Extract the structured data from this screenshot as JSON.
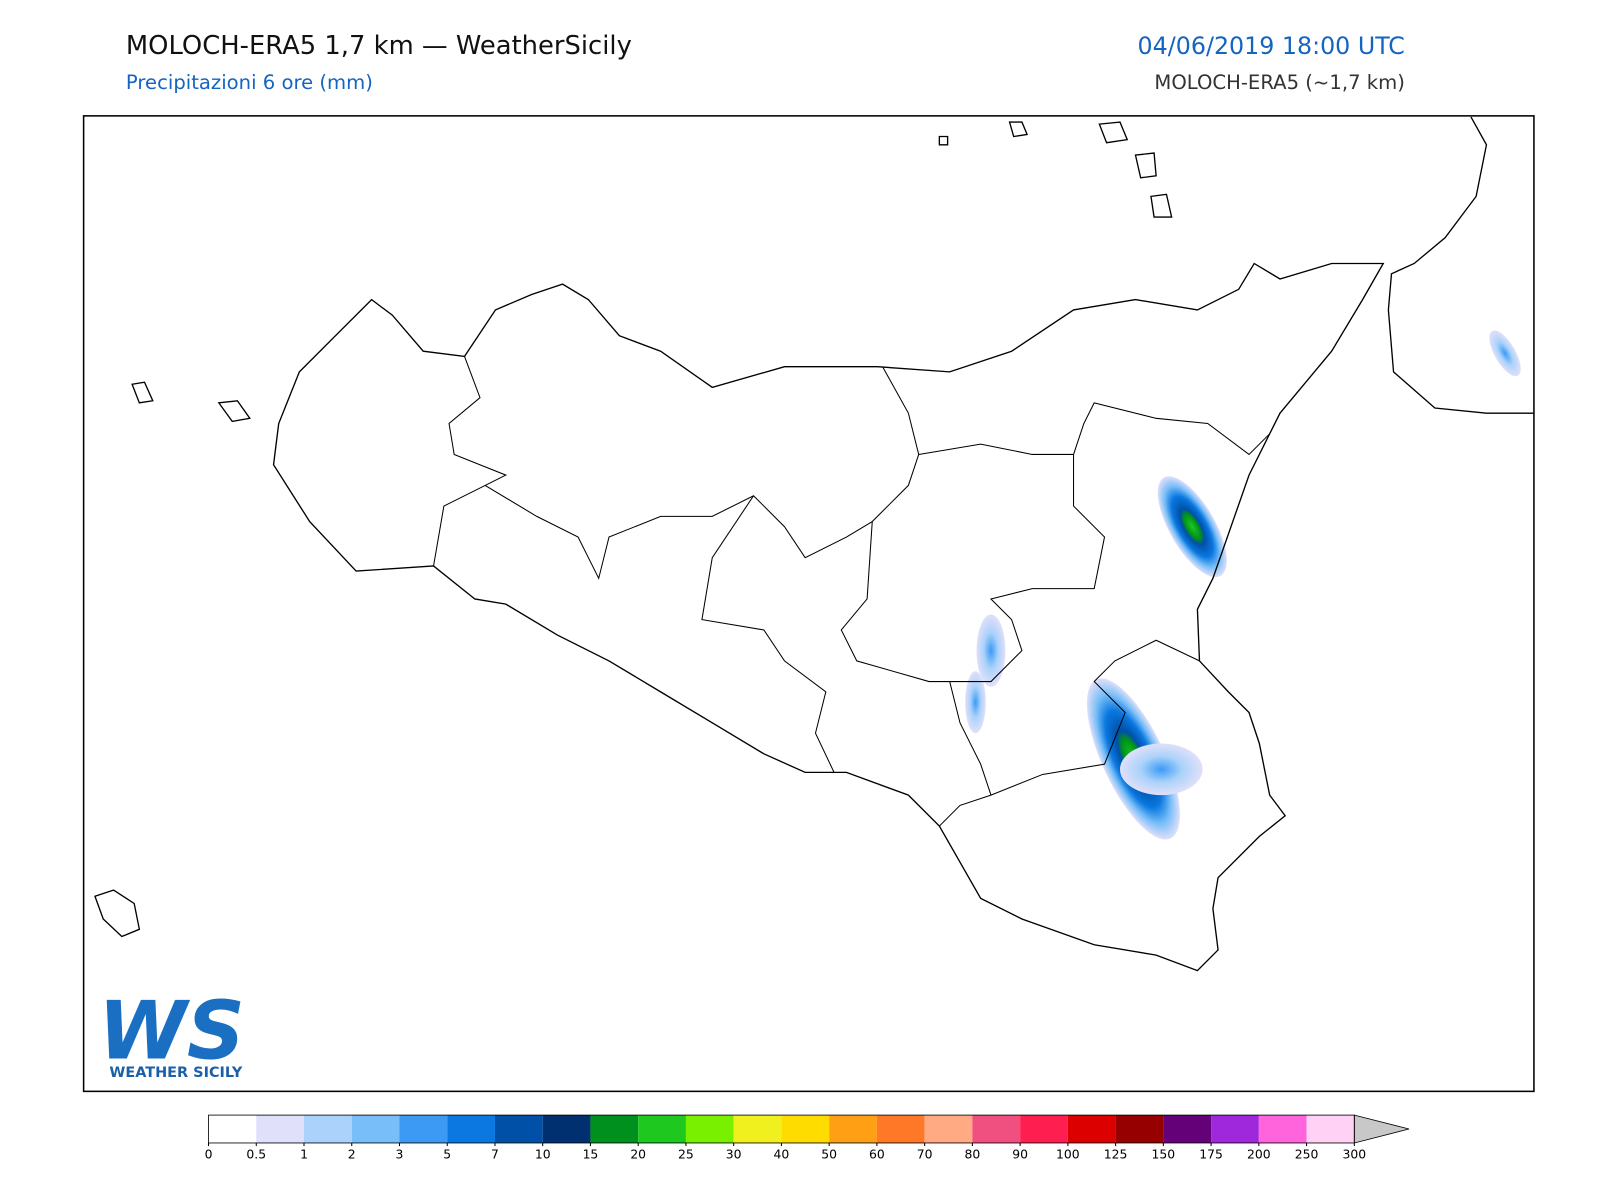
{
  "header": {
    "title": "MOLOCH-ERA5 1,7 km — WeatherSicily",
    "subtitle": "Precipitazioni 6 ore (mm)",
    "datetime": "04/06/2019 18:00 UTC",
    "model": "MOLOCH-ERA5 (~1,7 km)"
  },
  "logo": {
    "letters": "WS",
    "text": "WEATHER SICILY"
  },
  "colorbar": {
    "ticks": [
      0,
      0.5,
      1,
      2,
      3,
      5,
      7,
      10,
      15,
      20,
      25,
      30,
      40,
      50,
      60,
      70,
      80,
      90,
      100,
      125,
      150,
      175,
      200,
      250,
      300
    ],
    "colors": [
      "#ffffff",
      "#e0e0fa",
      "#aad2fa",
      "#78bef8",
      "#3c9af5",
      "#0a78e0",
      "#0050a8",
      "#003070",
      "#00901e",
      "#1ec81e",
      "#78f000",
      "#f0f01e",
      "#ffdc00",
      "#ffa014",
      "#ff7828",
      "#ffaa82",
      "#f05080",
      "#ff1e50",
      "#dc0000",
      "#960000",
      "#640078",
      "#a028dc",
      "#ff64dc",
      "#ffd2f5"
    ],
    "extend_color": "#c8c8c8"
  }
}
